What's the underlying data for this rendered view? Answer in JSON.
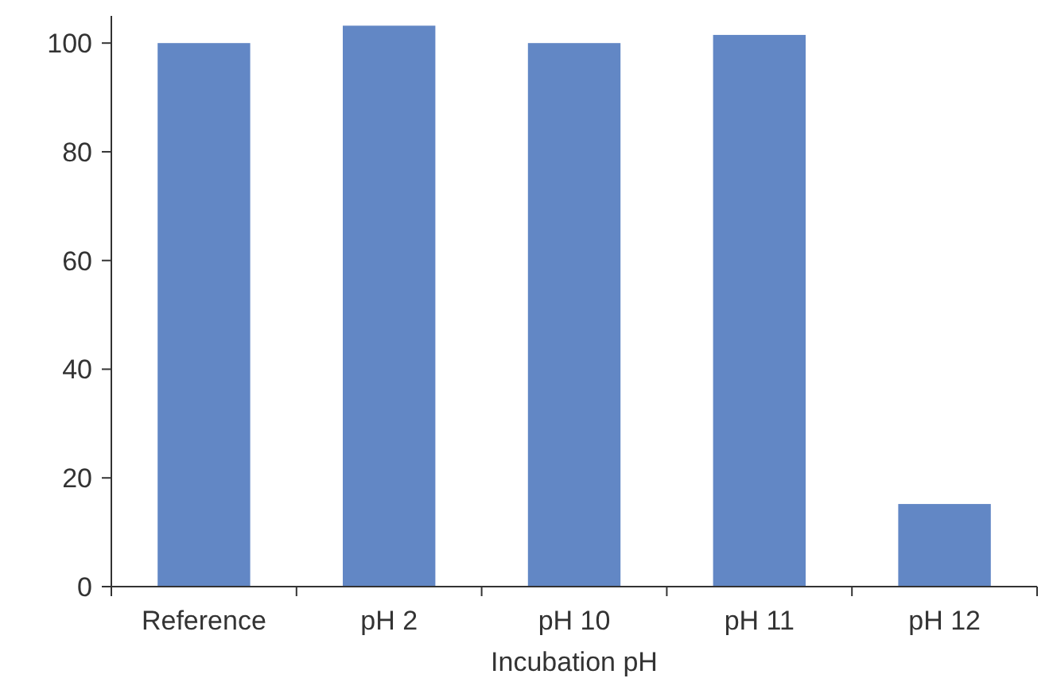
{
  "chart_data": {
    "type": "bar",
    "xlabel": "Incubation pH",
    "categories": [
      "Reference",
      "pH 2",
      "pH 10",
      "pH 11",
      "pH 12"
    ],
    "values": [
      100,
      103.2,
      100,
      101.5,
      15.2
    ],
    "color": "#6287c5",
    "ylim": [
      0,
      105
    ],
    "yticks": [
      0,
      20,
      40,
      60,
      80,
      100
    ],
    "grid": false
  }
}
